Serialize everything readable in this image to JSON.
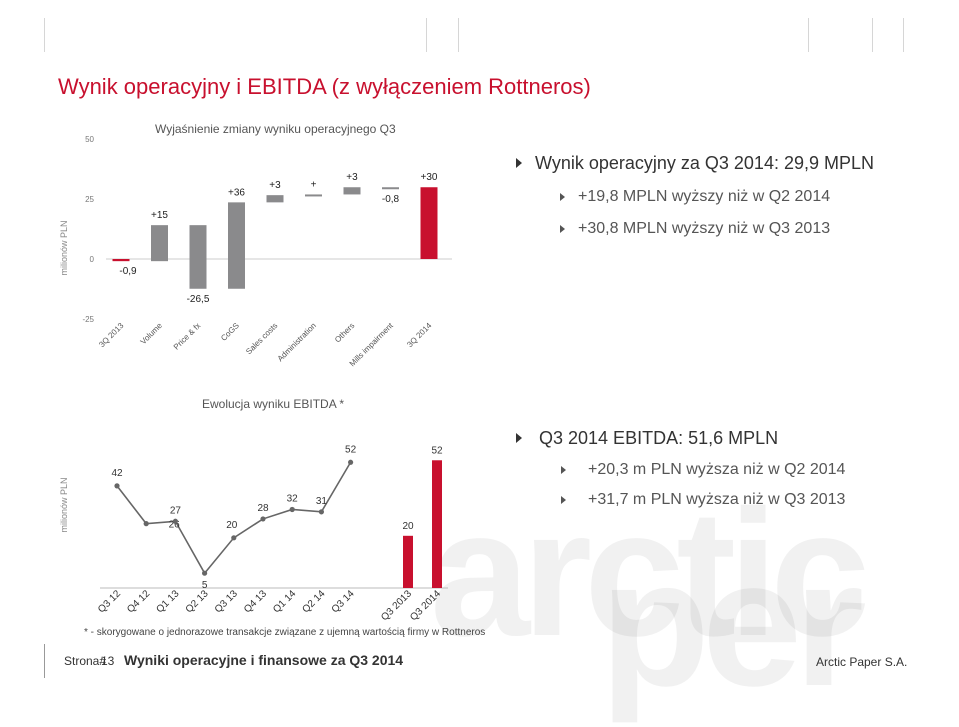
{
  "title": "Wynik operacyjny i EBITDA (z wyłączeniem Rottneros)",
  "brand_color": "#c8102e",
  "bar_gray": "#8a8a8c",
  "chart_data": [
    {
      "type": "bar",
      "subtype": "waterfall",
      "title": "Wyjaśnienie zmiany wyniku operacyjnego Q3",
      "ylabel": "milionów PLN",
      "ylim": [
        -25,
        50
      ],
      "yticks": [
        "50",
        "25",
        "0",
        "-25"
      ],
      "categories": [
        "3Q 2013",
        "Volume",
        "Price & fx",
        "CoGS",
        "Sales costs",
        "Administration",
        "Others",
        "Mills impairment",
        "3Q 2014"
      ],
      "labels": [
        "-0,9",
        "+15",
        "-26,5",
        "+36",
        "+3",
        "+",
        "+3",
        "-0,8",
        "+30"
      ],
      "values": [
        -0.9,
        15,
        -26.5,
        36,
        3,
        0.3,
        3,
        -0.8,
        29.9
      ],
      "bar_kind": [
        "total",
        "delta",
        "delta",
        "delta",
        "delta",
        "delta",
        "delta",
        "delta",
        "total"
      ]
    },
    {
      "type": "line",
      "title": "Ewolucja wyniku EBITDA *",
      "ylabel": "milionów PLN",
      "categories": [
        "Q3 12",
        "Q4 12",
        "Q1 13",
        "Q2 13",
        "Q3 13",
        "Q4 13",
        "Q1 14",
        "Q2 14",
        "Q3 14",
        "Q3 2013",
        "Q3 2014"
      ],
      "series": [
        {
          "kind": "line",
          "x": [
            "Q3 12",
            "Q4 12",
            "Q1 13",
            "Q2 13",
            "Q3 13",
            "Q4 13",
            "Q1 14",
            "Q2 14",
            "Q3 14"
          ],
          "values": [
            42,
            26,
            27,
            5,
            20,
            28,
            32,
            31,
            52
          ]
        },
        {
          "kind": "bar",
          "x": [
            "Q3 2013",
            "Q3 2014"
          ],
          "values": [
            20,
            52
          ]
        }
      ]
    }
  ],
  "bullets_top": {
    "main": "Wynik operacyjny za Q3 2014: 29,9 MPLN",
    "subs": [
      "+19,8 MPLN wyższy niż w Q2 2014",
      "+30,8 MPLN wyższy niż w Q3 2013"
    ]
  },
  "bullets_bottom": {
    "main": "Q3 2014 EBITDA: 51,6 MPLN",
    "subs": [
      "+20,3 m PLN wyższa niż w Q2 2014",
      "+31,7 m PLN wyższa niż w Q3 2013"
    ]
  },
  "footnote": "* - skorygowane o jednorazowe transakcje związane z ujemną wartością firmy w Rottneros",
  "footer": {
    "page_label": "Strona#",
    "page_number": "13",
    "title": "Wyniki operacyjne i finansowe za Q3 2014",
    "company": "Arctic Paper S.A."
  },
  "watermark": "arctic paper"
}
